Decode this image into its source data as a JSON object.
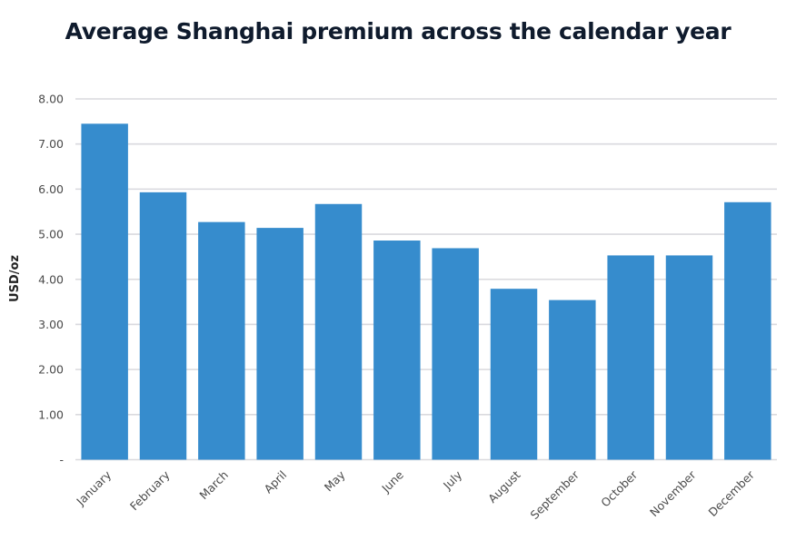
{
  "chart_data": {
    "type": "bar",
    "title": "Average Shanghai premium across the calendar year",
    "xlabel": "",
    "ylabel": "USD/oz",
    "ylim": [
      0,
      8
    ],
    "grid": true,
    "yticks": [
      0,
      1,
      2,
      3,
      4,
      5,
      6,
      7,
      8
    ],
    "ytick_labels": [
      "-",
      "1.00",
      "2.00",
      "3.00",
      "4.00",
      "5.00",
      "6.00",
      "7.00",
      "8.00"
    ],
    "categories": [
      "January",
      "February",
      "March",
      "April",
      "May",
      "June",
      "July",
      "August",
      "September",
      "October",
      "November",
      "December"
    ],
    "values": [
      7.45,
      5.93,
      5.27,
      5.14,
      5.67,
      4.86,
      4.69,
      3.79,
      3.54,
      4.53,
      4.53,
      5.71
    ],
    "bar_color": "#368ccd",
    "grid_color": "#d9d9de"
  }
}
